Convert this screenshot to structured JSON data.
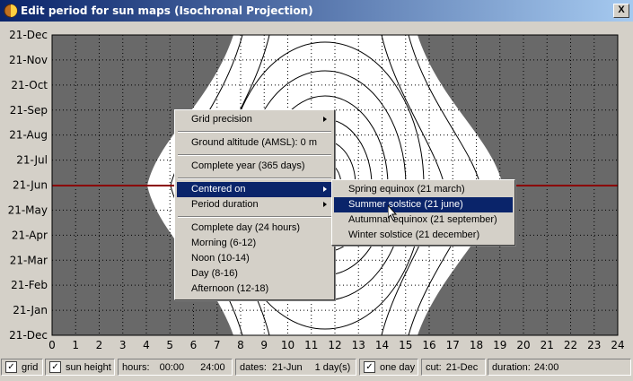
{
  "window": {
    "title": "Edit period for sun maps (Isochronal Projection)",
    "close_label": "X"
  },
  "chart": {
    "y_labels": [
      "21-Dec",
      "21-Nov",
      "21-Oct",
      "21-Sep",
      "21-Aug",
      "21-Jul",
      "21-Jun",
      "21-May",
      "21-Apr",
      "21-Mar",
      "21-Feb",
      "21-Jan",
      "21-Dec"
    ],
    "x_labels": [
      "0",
      "1",
      "2",
      "3",
      "4",
      "5",
      "6",
      "7",
      "8",
      "9",
      "10",
      "11",
      "12",
      "13",
      "14",
      "15",
      "16",
      "17",
      "18",
      "19",
      "20",
      "21",
      "22",
      "23",
      "24"
    ],
    "highlight_date": "21-Jun",
    "colors": {
      "night": "#696969",
      "day": "#ffffff",
      "cut_line": "#8b0000"
    }
  },
  "context_menu": {
    "items": {
      "grid_precision": "Grid precision",
      "ground_altitude": "Ground altitude (AMSL): 0 m",
      "complete_year": "Complete year (365 days)",
      "centered_on": "Centered on",
      "period_duration": "Period duration",
      "complete_day": "Complete day (24 hours)",
      "morning": "Morning (6-12)",
      "noon": "Noon (10-14)",
      "day": "Day (8-16)",
      "afternoon": "Afternoon (12-18)"
    }
  },
  "submenu": {
    "items": {
      "spring": "Spring equinox (21 march)",
      "summer": "Summer solstice (21 june)",
      "autumn": "Autumnal equinox (21 september)",
      "winter": "Winter solstice (21 december)"
    }
  },
  "statusbar": {
    "grid_label": "grid",
    "grid_checked": true,
    "sun_height_label": "sun height",
    "sun_height_checked": true,
    "hours_label": "hours:",
    "hours_start": "00:00",
    "hours_end": "24:00",
    "dates_label": "dates:",
    "dates_start": "21-Jun",
    "dates_count": "1 day(s)",
    "one_day_label": "one day",
    "one_day_checked": true,
    "cut_label": "cut:",
    "cut_value": "21-Dec",
    "duration_label": "duration:",
    "duration_value": "24:00"
  }
}
